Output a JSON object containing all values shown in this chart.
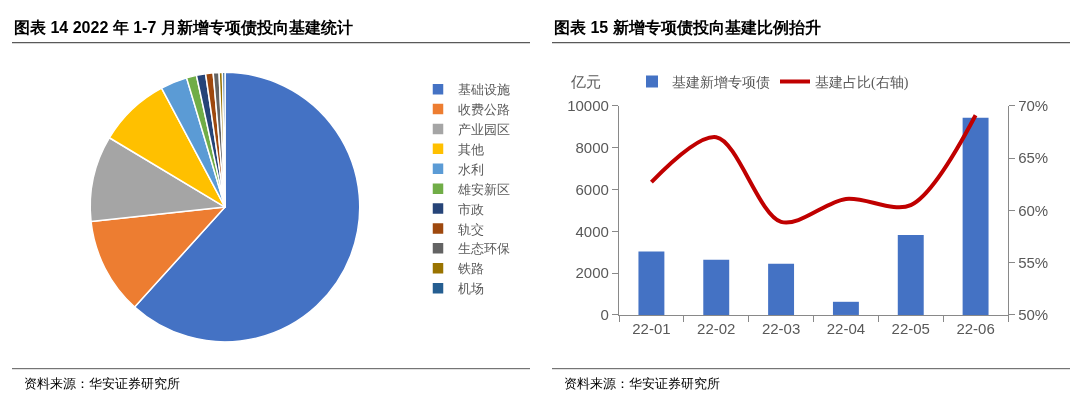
{
  "chart_data": [
    {
      "type": "pie",
      "title": "图表 14 2022 年 1-7 月新增专项债投向基建统计",
      "categories": [
        "基础设施",
        "收费公路",
        "产业园区",
        "其他",
        "水利",
        "雄安新区",
        "市政",
        "轨交",
        "生态环保",
        "铁路",
        "机场"
      ],
      "values": [
        61.7,
        11.6,
        10.3,
        8.6,
        3.2,
        1.2,
        1.1,
        0.9,
        0.7,
        0.4,
        0.3
      ],
      "colors": [
        "#4472c4",
        "#ed7d31",
        "#a5a5a5",
        "#ffc000",
        "#5b9bd5",
        "#70ad47",
        "#264478",
        "#9e480e",
        "#636363",
        "#997300",
        "#255e91"
      ],
      "legend": "right",
      "annotations": [
        "资料来源：华安证券研究所"
      ]
    },
    {
      "type": "bar",
      "title": "图表 15 新增专项债投向基建比例抬升",
      "ylabel": "亿元",
      "categories": [
        "22-01",
        "22-02",
        "22-03",
        "22-04",
        "22-05",
        "22-06"
      ],
      "series": [
        {
          "name": "基建新增专项债",
          "type": "bar",
          "color": "#4472c4",
          "values": [
            3040,
            2640,
            2450,
            630,
            3830,
            9430
          ]
        },
        {
          "name": "基建占比(右轴)",
          "type": "line",
          "axis": "y2",
          "color": "#c00000",
          "values": [
            62.7,
            67.0,
            58.9,
            61.1,
            60.5,
            69.1
          ]
        }
      ],
      "ylim": [
        0,
        10000
      ],
      "yticks": [
        0,
        2000,
        4000,
        6000,
        8000,
        10000
      ],
      "y2lim": [
        50,
        70
      ],
      "y2ticks": [
        {
          "value": 50,
          "label": "50%"
        },
        {
          "value": 55,
          "label": "55%"
        },
        {
          "value": 60,
          "label": "60%"
        },
        {
          "value": 65,
          "label": "65%"
        },
        {
          "value": 70,
          "label": "70%"
        }
      ],
      "grid": false,
      "legend": "top",
      "marker": "none",
      "line_style": "solid",
      "annotations": [
        "资料来源：华安证券研究所"
      ]
    }
  ]
}
